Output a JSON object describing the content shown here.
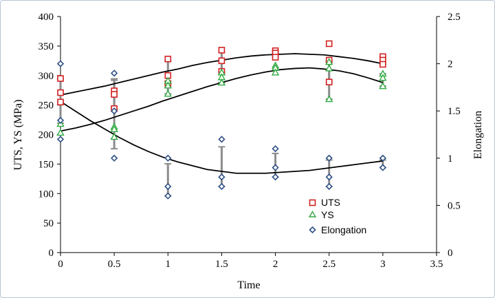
{
  "chart_data": {
    "type": "scatter",
    "xlabel": "Time",
    "ylabel_left": "UTS, YS (MPa)",
    "ylabel_right": "Elongation",
    "xlim": [
      0,
      3.5
    ],
    "x_ticks": [
      "0",
      "0.5",
      "1",
      "1.5",
      "2",
      "2.5",
      "3",
      "3.5"
    ],
    "x_tick_values": [
      0,
      0.5,
      1,
      1.5,
      2,
      2.5,
      3,
      3.5
    ],
    "ylim_left": [
      0,
      400
    ],
    "y_left_ticks": [
      "0",
      "50",
      "100",
      "150",
      "200",
      "250",
      "300",
      "350",
      "400"
    ],
    "y_left_tick_values": [
      0,
      50,
      100,
      150,
      200,
      250,
      300,
      350,
      400
    ],
    "ylim_right": [
      0,
      2.5
    ],
    "y_right_ticks": [
      "0",
      "0.5",
      "1",
      "1.5",
      "2",
      "2.5"
    ],
    "y_right_tick_values": [
      0,
      0.5,
      1,
      1.5,
      2,
      2.5
    ],
    "grid": false,
    "legend_position": "lower-right",
    "series": [
      {
        "name": "UTS",
        "axis": "left",
        "marker": "square",
        "color": "#d42020",
        "points": [
          [
            0,
            295
          ],
          [
            0,
            271
          ],
          [
            0,
            255
          ],
          [
            0.5,
            274
          ],
          [
            0.5,
            268
          ],
          [
            0.5,
            244
          ],
          [
            1,
            328
          ],
          [
            1,
            300
          ],
          [
            1,
            286
          ],
          [
            1.5,
            343
          ],
          [
            1.5,
            325
          ],
          [
            1.5,
            307
          ],
          [
            2,
            342
          ],
          [
            2,
            338
          ],
          [
            2,
            331
          ],
          [
            2.5,
            354
          ],
          [
            2.5,
            326
          ],
          [
            2.5,
            289
          ],
          [
            3,
            332
          ],
          [
            3,
            326
          ],
          [
            3,
            319
          ]
        ],
        "error_bars": [
          [
            0,
            255,
            295
          ],
          [
            0.5,
            244,
            292
          ],
          [
            1,
            286,
            325
          ],
          [
            1.5,
            307,
            340
          ],
          [
            2,
            331,
            342
          ],
          [
            2.5,
            289,
            325
          ],
          [
            3,
            319,
            332
          ]
        ],
        "trend": [
          267,
          272,
          277,
          282,
          288,
          294,
          300,
          306,
          311,
          317,
          322,
          326,
          330,
          333,
          335,
          336,
          337,
          336,
          335,
          332,
          329,
          325,
          320
        ]
      },
      {
        "name": "YS",
        "axis": "left",
        "marker": "triangle",
        "color": "#2eaa3f",
        "points": [
          [
            0,
            218
          ],
          [
            0,
            203
          ],
          [
            0.5,
            213
          ],
          [
            0.5,
            209
          ],
          [
            0.5,
            196
          ],
          [
            1,
            291
          ],
          [
            1,
            283
          ],
          [
            1,
            269
          ],
          [
            1.5,
            305
          ],
          [
            1.5,
            297
          ],
          [
            1.5,
            288
          ],
          [
            2,
            317
          ],
          [
            2,
            313
          ],
          [
            2,
            305
          ],
          [
            2.5,
            323
          ],
          [
            2.5,
            312
          ],
          [
            2.5,
            260
          ],
          [
            3,
            303
          ],
          [
            3,
            296
          ],
          [
            3,
            282
          ]
        ],
        "error_bars": [
          [
            1,
            269,
            291
          ],
          [
            1.5,
            288,
            305
          ],
          [
            2.5,
            260,
            323
          ],
          [
            3,
            282,
            303
          ]
        ],
        "trend": [
          206,
          211,
          217,
          224,
          232,
          240,
          248,
          257,
          265,
          273,
          281,
          288,
          295,
          301,
          306,
          310,
          312,
          313,
          311,
          308,
          303,
          296,
          288
        ]
      },
      {
        "name": "Elongation",
        "axis": "right",
        "marker": "diamond",
        "color": "#2e4f85",
        "points": [
          [
            0,
            2.0
          ],
          [
            0,
            1.4
          ],
          [
            0,
            1.2
          ],
          [
            0.5,
            1.9
          ],
          [
            0.5,
            1.5
          ],
          [
            0.5,
            1.0
          ],
          [
            1,
            1.0
          ],
          [
            1,
            0.7
          ],
          [
            1,
            0.6
          ],
          [
            1.5,
            1.2
          ],
          [
            1.5,
            0.8
          ],
          [
            1.5,
            0.7
          ],
          [
            2,
            1.1
          ],
          [
            2,
            0.9
          ],
          [
            2,
            0.8
          ],
          [
            2.5,
            1.0
          ],
          [
            2.5,
            0.8
          ],
          [
            2.5,
            0.7
          ],
          [
            3,
            1.0
          ],
          [
            3,
            0.9
          ]
        ],
        "error_bars": [
          [
            0,
            1.37,
            1.6
          ],
          [
            0.5,
            1.1,
            1.84
          ],
          [
            1,
            0.6,
            0.94
          ],
          [
            1.5,
            0.7,
            1.12
          ],
          [
            2,
            0.8,
            1.05
          ],
          [
            2.5,
            0.7,
            0.98
          ],
          [
            3,
            0.9,
            0.98
          ]
        ],
        "trend": [
          1.6,
          1.5,
          1.4,
          1.31,
          1.22,
          1.14,
          1.07,
          1.01,
          0.96,
          0.92,
          0.88,
          0.86,
          0.84,
          0.84,
          0.84,
          0.85,
          0.86,
          0.87,
          0.89,
          0.91,
          0.93,
          0.95,
          0.97
        ]
      }
    ]
  }
}
